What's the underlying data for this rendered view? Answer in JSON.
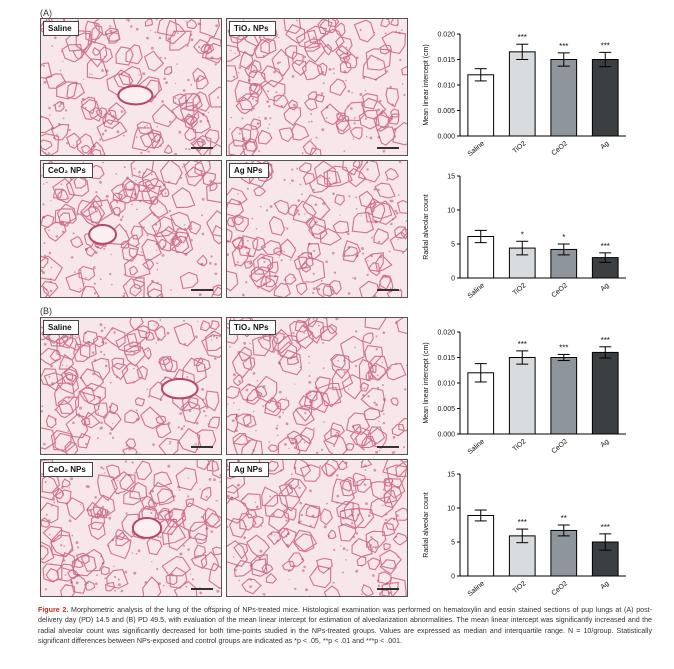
{
  "panels": {
    "A": {
      "letter": "(A)",
      "tiles": [
        "Saline",
        "TiO₂ NPs",
        "CeO₂ NPs",
        "Ag NPs"
      ]
    },
    "B": {
      "letter": "(B)",
      "tiles": [
        "Saline",
        "TiO₂ NPs",
        "CeO₂ NPs",
        "Ag NPs"
      ]
    }
  },
  "chart_data": [
    {
      "type": "bar",
      "categories": [
        "Saline",
        "TiO2",
        "CeO2",
        "Ag"
      ],
      "values": [
        0.012,
        0.0165,
        0.015,
        0.015
      ],
      "errors": [
        0.0012,
        0.0015,
        0.0013,
        0.0014
      ],
      "significance": [
        "",
        "***",
        "***",
        "***"
      ],
      "ylabel": "Mean linear intercept (cm)",
      "ylim": [
        0,
        0.02
      ],
      "yticks": [
        "0.000",
        "0.005",
        "0.010",
        "0.015",
        "0.020"
      ],
      "colors": [
        "#ffffff",
        "#d9dcdf",
        "#8e959b",
        "#3c3f42"
      ]
    },
    {
      "type": "bar",
      "categories": [
        "Saline",
        "TiO2",
        "CeO2",
        "Ag"
      ],
      "values": [
        6.1,
        4.4,
        4.2,
        3.0
      ],
      "errors": [
        0.9,
        1.0,
        0.8,
        0.7
      ],
      "significance": [
        "",
        "*",
        "*",
        "***"
      ],
      "ylabel": "Radial alveolar count",
      "ylim": [
        0,
        15
      ],
      "yticks": [
        "0",
        "5",
        "10",
        "15"
      ],
      "colors": [
        "#ffffff",
        "#d9dcdf",
        "#8e959b",
        "#3c3f42"
      ]
    },
    {
      "type": "bar",
      "categories": [
        "Saline",
        "TiO2",
        "CeO2",
        "Ag"
      ],
      "values": [
        0.012,
        0.015,
        0.015,
        0.016
      ],
      "errors": [
        0.0018,
        0.0013,
        0.0006,
        0.0011
      ],
      "significance": [
        "",
        "***",
        "***",
        "***"
      ],
      "ylabel": "Mean linear intercept (cm)",
      "ylim": [
        0,
        0.02
      ],
      "yticks": [
        "0.000",
        "0.005",
        "0.010",
        "0.015",
        "0.020"
      ],
      "colors": [
        "#ffffff",
        "#d9dcdf",
        "#8e959b",
        "#3c3f42"
      ]
    },
    {
      "type": "bar",
      "categories": [
        "Saline",
        "TiO2",
        "CeO2",
        "Ag"
      ],
      "values": [
        8.9,
        5.9,
        6.7,
        5.0
      ],
      "errors": [
        0.8,
        1.0,
        0.8,
        1.2
      ],
      "significance": [
        "",
        "***",
        "**",
        "***"
      ],
      "ylabel": "Radial alveolar count",
      "ylim": [
        0,
        15
      ],
      "yticks": [
        "0",
        "5",
        "10",
        "15"
      ],
      "colors": [
        "#ffffff",
        "#d9dcdf",
        "#8e959b",
        "#3c3f42"
      ]
    }
  ],
  "caption": {
    "label": "Figure 2.",
    "text": "Morphometric analysis of the lung of the offspring of NPs-treated mice. Histological examination was performed on hematoxylin and eosin stained sections of pup lungs at (A) post-delivery day (PD) 14.5 and (B) PD 49.5, with evaluation of the mean linear intercept for estimation of alveolarization abnormalities. The mean linear intercept was significantly increased and the radial alveolar count was significantly decreased for both time-points studied in the NPs-treated groups. Values are expressed as median and interquartile range. N = 10/group. Statistically significant differences between NPs-exposed and control groups are indicated as *p < .05, **p < .01 and ***p < .001."
  }
}
